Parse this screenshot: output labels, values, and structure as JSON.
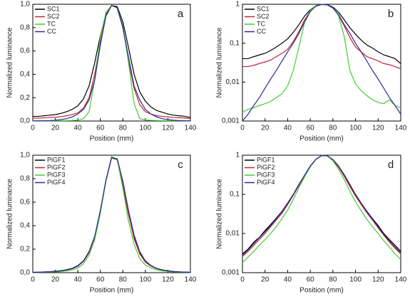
{
  "chart_data": [
    {
      "type": "line",
      "annotation": "a",
      "x_label": "Position (mm)",
      "y_label": "Normalized luminance",
      "yscale": "linear",
      "legend": "upper left",
      "x": [
        0,
        5,
        10,
        15,
        20,
        25,
        30,
        35,
        40,
        45,
        50,
        55,
        60,
        65,
        70,
        75,
        80,
        85,
        90,
        95,
        100,
        105,
        110,
        115,
        120,
        125,
        130,
        135,
        140
      ],
      "xlim": [
        0,
        140
      ],
      "xticks": [
        0,
        20,
        40,
        60,
        80,
        100,
        120,
        140
      ],
      "ylim": [
        0,
        1.0
      ],
      "yticks": [
        {
          "value": 0,
          "label": "0,0"
        },
        {
          "value": 0.2,
          "label": "0,2"
        },
        {
          "value": 0.4,
          "label": "0,4"
        },
        {
          "value": 0.6,
          "label": "0,6"
        },
        {
          "value": 0.8,
          "label": "0,8"
        },
        {
          "value": 1.0,
          "label": "1,0"
        }
      ],
      "series": [
        {
          "name": "SC1",
          "color": "#000000",
          "values": [
            0.04,
            0.04,
            0.045,
            0.05,
            0.055,
            0.065,
            0.08,
            0.1,
            0.13,
            0.19,
            0.3,
            0.5,
            0.73,
            0.91,
            0.99,
            0.98,
            0.85,
            0.63,
            0.4,
            0.25,
            0.17,
            0.12,
            0.09,
            0.075,
            0.06,
            0.05,
            0.045,
            0.04,
            0.03
          ]
        },
        {
          "name": "SC2",
          "color": "#c0282d",
          "values": [
            0.025,
            0.025,
            0.027,
            0.03,
            0.033,
            0.037,
            0.045,
            0.055,
            0.07,
            0.11,
            0.2,
            0.4,
            0.68,
            0.9,
            0.99,
            0.97,
            0.8,
            0.52,
            0.28,
            0.14,
            0.08,
            0.06,
            0.045,
            0.04,
            0.035,
            0.03,
            0.028,
            0.025,
            0.022
          ]
        },
        {
          "name": "TC",
          "color": "#44cc33",
          "values": [
            0.0017,
            0.002,
            0.0022,
            0.0025,
            0.0028,
            0.0032,
            0.004,
            0.005,
            0.008,
            0.02,
            0.08,
            0.35,
            0.72,
            0.93,
            0.99,
            0.97,
            0.82,
            0.5,
            0.15,
            0.02,
            0.009,
            0.006,
            0.0045,
            0.0035,
            0.003,
            0.0028,
            0.0035,
            0.0025,
            0.0022
          ]
        },
        {
          "name": "CC",
          "color": "#2b2b9a",
          "values": [
            0.001,
            0.0015,
            0.0025,
            0.004,
            0.007,
            0.012,
            0.02,
            0.035,
            0.06,
            0.1,
            0.18,
            0.35,
            0.65,
            0.9,
            0.99,
            0.97,
            0.8,
            0.55,
            0.3,
            0.18,
            0.1,
            0.06,
            0.035,
            0.02,
            0.012,
            0.007,
            0.004,
            0.0025,
            0.0015
          ]
        }
      ]
    },
    {
      "type": "line",
      "annotation": "b",
      "x_label": "Position (mm)",
      "y_label": "Normalized luminance",
      "yscale": "log",
      "legend": "upper left",
      "x": [
        0,
        5,
        10,
        15,
        20,
        25,
        30,
        35,
        40,
        45,
        50,
        55,
        60,
        65,
        70,
        75,
        80,
        85,
        90,
        95,
        100,
        105,
        110,
        115,
        120,
        125,
        130,
        135,
        140
      ],
      "xlim": [
        0,
        140
      ],
      "xticks": [
        0,
        20,
        40,
        60,
        80,
        100,
        120,
        140
      ],
      "ylim": [
        0.001,
        1
      ],
      "yticks": [
        {
          "value": 0.001,
          "label": "0,001"
        },
        {
          "value": 0.01,
          "label": "0,01"
        },
        {
          "value": 0.1,
          "label": "0,1"
        },
        1
      ],
      "series": [
        {
          "name": "SC1",
          "color": "#000000",
          "values": [
            0.04,
            0.04,
            0.045,
            0.05,
            0.055,
            0.065,
            0.08,
            0.1,
            0.13,
            0.19,
            0.3,
            0.5,
            0.73,
            0.91,
            0.99,
            0.98,
            0.85,
            0.63,
            0.4,
            0.25,
            0.17,
            0.12,
            0.09,
            0.075,
            0.06,
            0.05,
            0.045,
            0.04,
            0.03
          ]
        },
        {
          "name": "SC2",
          "color": "#c0282d",
          "values": [
            0.025,
            0.025,
            0.027,
            0.03,
            0.033,
            0.037,
            0.045,
            0.055,
            0.07,
            0.11,
            0.2,
            0.4,
            0.68,
            0.9,
            0.99,
            0.97,
            0.8,
            0.52,
            0.28,
            0.14,
            0.08,
            0.06,
            0.045,
            0.04,
            0.035,
            0.03,
            0.028,
            0.025,
            0.022
          ]
        },
        {
          "name": "TC",
          "color": "#44cc33",
          "values": [
            0.0017,
            0.002,
            0.0022,
            0.0025,
            0.0028,
            0.0032,
            0.004,
            0.005,
            0.008,
            0.02,
            0.08,
            0.35,
            0.72,
            0.93,
            0.99,
            0.97,
            0.82,
            0.5,
            0.15,
            0.02,
            0.009,
            0.006,
            0.0045,
            0.0035,
            0.003,
            0.0028,
            0.0035,
            0.0025,
            0.0022
          ]
        },
        {
          "name": "CC",
          "color": "#2b2b9a",
          "values": [
            0.001,
            0.0015,
            0.0025,
            0.004,
            0.007,
            0.012,
            0.02,
            0.035,
            0.06,
            0.1,
            0.18,
            0.35,
            0.65,
            0.9,
            0.99,
            0.97,
            0.8,
            0.55,
            0.3,
            0.18,
            0.1,
            0.06,
            0.035,
            0.02,
            0.012,
            0.007,
            0.004,
            0.0025,
            0.0015
          ]
        }
      ]
    },
    {
      "type": "line",
      "annotation": "c",
      "x_label": "Position (mm)",
      "y_label": "Normalized luminance",
      "yscale": "linear",
      "legend": "upper left",
      "x": [
        0,
        5,
        10,
        15,
        20,
        25,
        30,
        35,
        40,
        45,
        50,
        55,
        60,
        65,
        70,
        75,
        80,
        85,
        90,
        95,
        100,
        105,
        110,
        115,
        120,
        125,
        130,
        135,
        140
      ],
      "xlim": [
        0,
        140
      ],
      "xticks": [
        0,
        20,
        40,
        60,
        80,
        100,
        120,
        140
      ],
      "ylim": [
        0,
        1.0
      ],
      "yticks": [
        {
          "value": 0,
          "label": "0,0"
        },
        {
          "value": 0.2,
          "label": "0,2"
        },
        {
          "value": 0.4,
          "label": "0,4"
        },
        {
          "value": 0.6,
          "label": "0,6"
        },
        {
          "value": 0.8,
          "label": "0,8"
        },
        {
          "value": 1.0,
          "label": "1,0"
        }
      ],
      "series": [
        {
          "name": "PiGF1",
          "color": "#000000",
          "values": [
            0.003,
            0.004,
            0.006,
            0.008,
            0.012,
            0.017,
            0.025,
            0.037,
            0.06,
            0.1,
            0.18,
            0.3,
            0.52,
            0.78,
            0.98,
            0.96,
            0.75,
            0.5,
            0.3,
            0.17,
            0.1,
            0.06,
            0.037,
            0.024,
            0.016,
            0.01,
            0.007,
            0.005,
            0.0035
          ]
        },
        {
          "name": "PiGF2",
          "color": "#c0282d",
          "values": [
            0.0026,
            0.0035,
            0.005,
            0.007,
            0.01,
            0.015,
            0.022,
            0.033,
            0.055,
            0.095,
            0.17,
            0.3,
            0.52,
            0.78,
            0.98,
            0.97,
            0.76,
            0.5,
            0.29,
            0.16,
            0.09,
            0.055,
            0.034,
            0.022,
            0.014,
            0.009,
            0.006,
            0.0042,
            0.003
          ]
        },
        {
          "name": "PiGF3",
          "color": "#44cc33",
          "values": [
            0.0018,
            0.0025,
            0.0035,
            0.005,
            0.007,
            0.01,
            0.015,
            0.024,
            0.04,
            0.075,
            0.15,
            0.28,
            0.5,
            0.78,
            0.99,
            0.96,
            0.72,
            0.44,
            0.24,
            0.12,
            0.065,
            0.038,
            0.023,
            0.015,
            0.01,
            0.0065,
            0.0045,
            0.003,
            0.0022
          ]
        },
        {
          "name": "PiGF4",
          "color": "#2b2b9a",
          "values": [
            0.0028,
            0.0038,
            0.0055,
            0.0078,
            0.011,
            0.016,
            0.024,
            0.036,
            0.058,
            0.1,
            0.18,
            0.31,
            0.53,
            0.79,
            0.98,
            0.97,
            0.78,
            0.53,
            0.32,
            0.18,
            0.1,
            0.06,
            0.036,
            0.023,
            0.015,
            0.0095,
            0.0065,
            0.0045,
            0.0032
          ]
        }
      ]
    },
    {
      "type": "line",
      "annotation": "d",
      "x_label": "Position (mm)",
      "y_label": "Normalized luminance",
      "yscale": "log",
      "legend": "upper left",
      "x": [
        0,
        5,
        10,
        15,
        20,
        25,
        30,
        35,
        40,
        45,
        50,
        55,
        60,
        65,
        70,
        75,
        80,
        85,
        90,
        95,
        100,
        105,
        110,
        115,
        120,
        125,
        130,
        135,
        140
      ],
      "xlim": [
        0,
        140
      ],
      "xticks": [
        0,
        20,
        40,
        60,
        80,
        100,
        120,
        140
      ],
      "ylim": [
        0.001,
        1
      ],
      "yticks": [
        {
          "value": 0.001,
          "label": "0,001"
        },
        {
          "value": 0.01,
          "label": "0,01"
        },
        {
          "value": 0.1,
          "label": "0,1"
        },
        1
      ],
      "series": [
        {
          "name": "PiGF1",
          "color": "#000000",
          "values": [
            0.003,
            0.004,
            0.006,
            0.008,
            0.012,
            0.017,
            0.025,
            0.037,
            0.06,
            0.1,
            0.18,
            0.3,
            0.52,
            0.78,
            0.98,
            0.96,
            0.75,
            0.5,
            0.3,
            0.17,
            0.1,
            0.06,
            0.037,
            0.024,
            0.016,
            0.01,
            0.007,
            0.005,
            0.0035
          ]
        },
        {
          "name": "PiGF2",
          "color": "#c0282d",
          "values": [
            0.0026,
            0.0035,
            0.005,
            0.007,
            0.01,
            0.015,
            0.022,
            0.033,
            0.055,
            0.095,
            0.17,
            0.3,
            0.52,
            0.78,
            0.98,
            0.97,
            0.76,
            0.5,
            0.29,
            0.16,
            0.09,
            0.055,
            0.034,
            0.022,
            0.014,
            0.009,
            0.006,
            0.0042,
            0.003
          ]
        },
        {
          "name": "PiGF3",
          "color": "#44cc33",
          "values": [
            0.0018,
            0.0025,
            0.0035,
            0.005,
            0.007,
            0.01,
            0.015,
            0.024,
            0.04,
            0.075,
            0.15,
            0.28,
            0.5,
            0.78,
            0.99,
            0.96,
            0.72,
            0.44,
            0.24,
            0.12,
            0.065,
            0.038,
            0.023,
            0.015,
            0.01,
            0.0065,
            0.0045,
            0.003,
            0.0022
          ]
        },
        {
          "name": "PiGF4",
          "color": "#2b2b9a",
          "values": [
            0.0028,
            0.0038,
            0.0055,
            0.0078,
            0.011,
            0.016,
            0.024,
            0.036,
            0.058,
            0.1,
            0.18,
            0.31,
            0.53,
            0.79,
            0.98,
            0.97,
            0.78,
            0.53,
            0.32,
            0.18,
            0.1,
            0.06,
            0.036,
            0.023,
            0.015,
            0.0095,
            0.0065,
            0.0045,
            0.0032
          ]
        }
      ]
    }
  ]
}
